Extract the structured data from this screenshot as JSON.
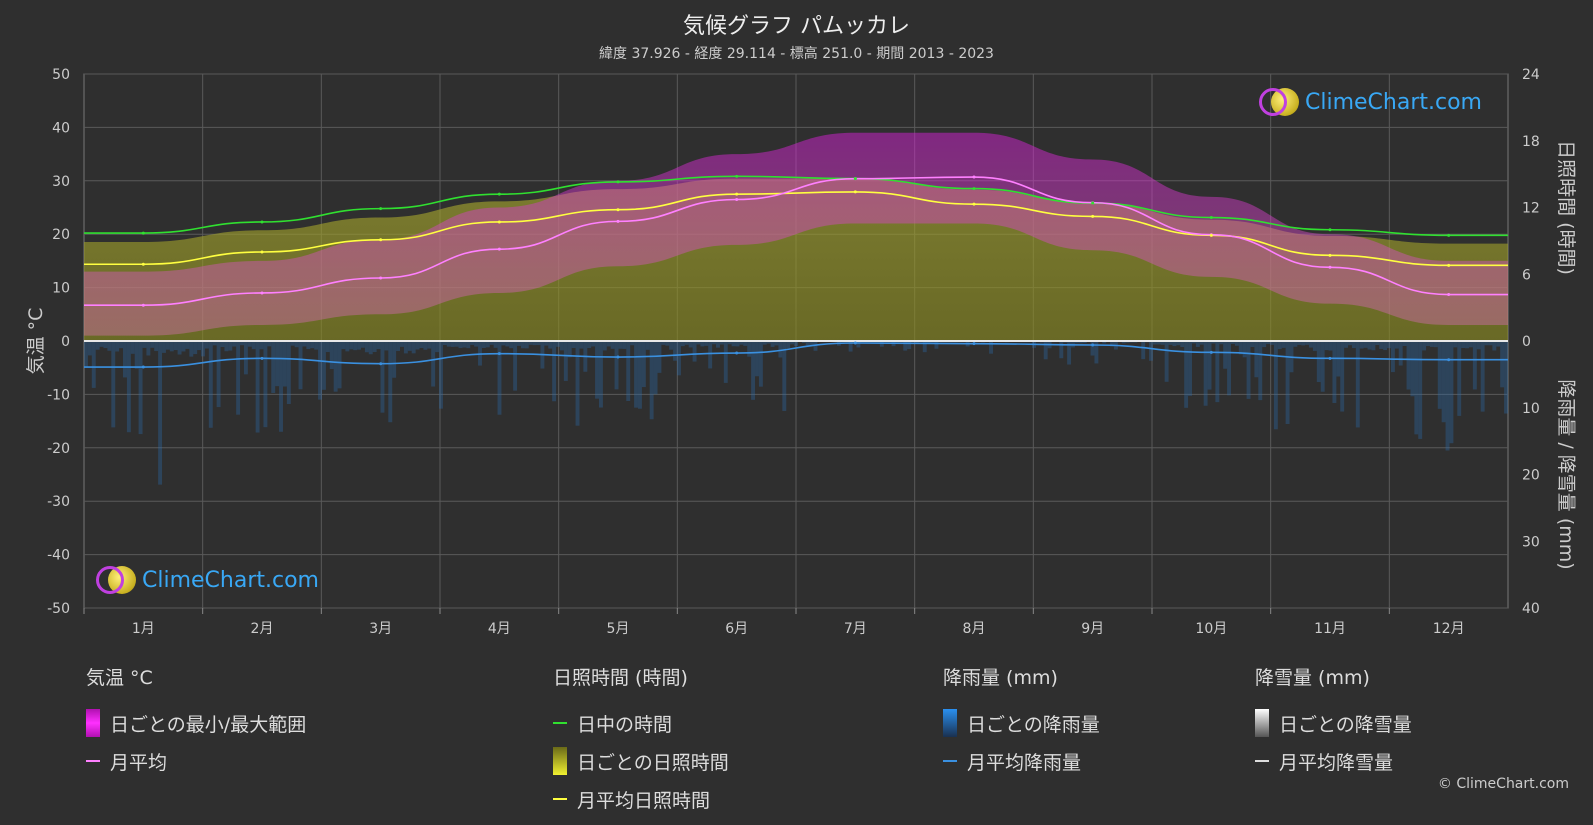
{
  "title": "気候グラフ パムッカレ",
  "subtitle": "緯度 37.926 - 経度 29.114 - 標高 251.0 - 期間 2013 - 2023",
  "logo_text": "ClimeChart.com",
  "copyright": "© ClimeChart.com",
  "colors": {
    "background": "#2f2f2f",
    "temp_range": "#e020e0",
    "temp_avg": "#ff80ff",
    "daylight": "#30e030",
    "sunshine_fill": "#9a9a20",
    "sunshine_avg": "#ffff40",
    "rain": "#2a7fd0",
    "rain_avg": "#3a90e0",
    "snow": "#dddddd"
  },
  "axes": {
    "left_label": "気温 °C",
    "right_top_label": "日照時間 (時間)",
    "right_bottom_label": "降雨量 / 降雪量 (mm)"
  },
  "legend": {
    "temp": {
      "head": "気温 °C",
      "items": [
        "日ごとの最小/最大範囲",
        "月平均"
      ]
    },
    "sun": {
      "head": "日照時間 (時間)",
      "items": [
        "日中の時間",
        "日ごとの日照時間",
        "月平均日照時間"
      ]
    },
    "rain": {
      "head": "降雨量 (mm)",
      "items": [
        "日ごとの降雨量",
        "月平均降雨量"
      ]
    },
    "snow": {
      "head": "降雪量 (mm)",
      "items": [
        "日ごとの降雪量",
        "月平均降雪量"
      ]
    }
  },
  "chart_data": {
    "type": "line",
    "months": [
      "1月",
      "2月",
      "3月",
      "4月",
      "5月",
      "6月",
      "7月",
      "8月",
      "9月",
      "10月",
      "11月",
      "12月"
    ],
    "temp_axis": {
      "ylim": [
        -50,
        50
      ],
      "ticks": [
        50,
        40,
        30,
        20,
        10,
        0,
        -10,
        -20,
        -30,
        -40,
        -50
      ]
    },
    "sun_axis": {
      "ylim": [
        0,
        24
      ],
      "ticks": [
        24,
        18,
        12,
        6,
        0
      ]
    },
    "precip_axis": {
      "ylim": [
        0,
        40
      ],
      "ticks": [
        0,
        10,
        20,
        30,
        40
      ]
    },
    "series": [
      {
        "name": "月平均",
        "unit": "°C",
        "values": [
          6.7,
          9.0,
          11.8,
          17.2,
          22.4,
          26.5,
          30.4,
          30.7,
          25.9,
          19.9,
          13.8,
          8.7
        ]
      },
      {
        "name": "日ごとの最大 (approx)",
        "unit": "°C",
        "values": [
          13,
          15,
          19,
          25,
          30,
          35,
          39,
          39,
          34,
          27,
          20,
          15
        ]
      },
      {
        "name": "日ごとの最小 (approx)",
        "unit": "°C",
        "values": [
          1,
          3,
          5,
          9,
          14,
          18,
          22,
          22,
          17,
          12,
          7,
          3
        ]
      },
      {
        "name": "日中の時間",
        "unit": "h",
        "values": [
          9.7,
          10.7,
          11.9,
          13.2,
          14.3,
          14.8,
          14.6,
          13.7,
          12.4,
          11.1,
          10.0,
          9.5
        ]
      },
      {
        "name": "月平均日照時間",
        "unit": "h",
        "values": [
          6.9,
          8.0,
          9.1,
          10.7,
          11.8,
          13.2,
          13.4,
          12.3,
          11.2,
          9.5,
          7.7,
          6.8
        ]
      },
      {
        "name": "月平均降雨量",
        "unit": "mm",
        "values": [
          3.9,
          2.6,
          3.4,
          1.9,
          2.4,
          1.8,
          0.3,
          0.4,
          0.6,
          1.7,
          2.6,
          2.8
        ]
      },
      {
        "name": "月平均降雪量",
        "unit": "mm",
        "values": [
          0,
          0,
          0,
          0,
          0,
          0,
          0,
          0,
          0,
          0,
          0,
          0
        ]
      }
    ]
  }
}
